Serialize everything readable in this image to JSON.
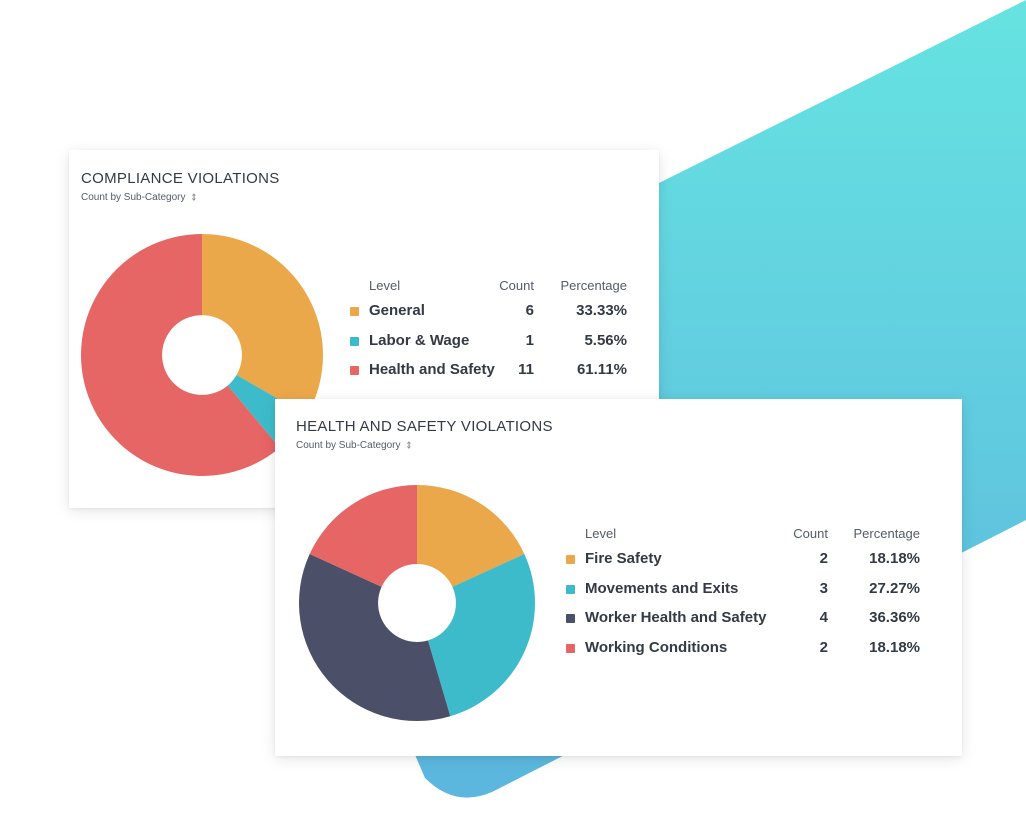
{
  "colors": {
    "orange": "#eba84a",
    "teal": "#3dbbca",
    "red": "#e66565",
    "navy": "#4b5068",
    "accent_gradient_start": "#66e3e1",
    "accent_gradient_end": "#5cb6de"
  },
  "legend_headers": {
    "level": "Level",
    "count": "Count",
    "percentage": "Percentage"
  },
  "cards": [
    {
      "title": "COMPLIANCE VIOLATIONS",
      "subtitle": "Count by Sub-Category",
      "sort_icon": "sort-icon"
    },
    {
      "title": "HEALTH AND SAFETY VIOLATIONS",
      "subtitle": "Count by Sub-Category",
      "sort_icon": "sort-icon"
    }
  ],
  "chart_data": [
    {
      "type": "pie",
      "title": "COMPLIANCE VIOLATIONS",
      "subtitle": "Count by Sub-Category",
      "categories": [
        "General",
        "Labor & Wage",
        "Health and Safety"
      ],
      "values": [
        6,
        1,
        11
      ],
      "percentages": [
        "33.33%",
        "5.56%",
        "61.11%"
      ],
      "colors": [
        "#eba84a",
        "#3dbbca",
        "#e66565"
      ],
      "donut": true
    },
    {
      "type": "pie",
      "title": "HEALTH AND SAFETY VIOLATIONS",
      "subtitle": "Count by Sub-Category",
      "categories": [
        "Fire Safety",
        "Movements and Exits",
        "Worker Health and Safety",
        "Working Conditions"
      ],
      "values": [
        2,
        3,
        4,
        2
      ],
      "percentages": [
        "18.18%",
        "27.27%",
        "36.36%",
        "18.18%"
      ],
      "colors": [
        "#eba84a",
        "#3dbbca",
        "#4b5068",
        "#e66565"
      ],
      "donut": true
    }
  ]
}
